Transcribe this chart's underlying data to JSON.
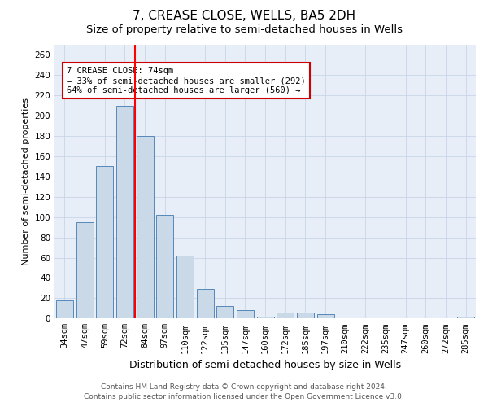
{
  "title": "7, CREASE CLOSE, WELLS, BA5 2DH",
  "subtitle": "Size of property relative to semi-detached houses in Wells",
  "xlabel": "Distribution of semi-detached houses by size in Wells",
  "ylabel": "Number of semi-detached properties",
  "categories": [
    "34sqm",
    "47sqm",
    "59sqm",
    "72sqm",
    "84sqm",
    "97sqm",
    "110sqm",
    "122sqm",
    "135sqm",
    "147sqm",
    "160sqm",
    "172sqm",
    "185sqm",
    "197sqm",
    "210sqm",
    "222sqm",
    "235sqm",
    "247sqm",
    "260sqm",
    "272sqm",
    "285sqm"
  ],
  "values": [
    18,
    95,
    150,
    210,
    180,
    102,
    62,
    29,
    12,
    8,
    2,
    6,
    6,
    4,
    0,
    0,
    0,
    0,
    0,
    0,
    2
  ],
  "bar_color": "#c9d9e8",
  "bar_edge_color": "#5588bb",
  "red_line_x": 3.5,
  "annotation_text": "7 CREASE CLOSE: 74sqm\n← 33% of semi-detached houses are smaller (292)\n64% of semi-detached houses are larger (560) →",
  "annotation_box_color": "#ffffff",
  "annotation_box_edge_color": "#cc0000",
  "ylim": [
    0,
    270
  ],
  "yticks": [
    0,
    20,
    40,
    60,
    80,
    100,
    120,
    140,
    160,
    180,
    200,
    220,
    240,
    260
  ],
  "grid_color": "#c8d4e8",
  "background_color": "#e8eef8",
  "footer_line1": "Contains HM Land Registry data © Crown copyright and database right 2024.",
  "footer_line2": "Contains public sector information licensed under the Open Government Licence v3.0.",
  "title_fontsize": 11,
  "subtitle_fontsize": 9.5,
  "xlabel_fontsize": 9,
  "ylabel_fontsize": 8,
  "tick_fontsize": 7.5,
  "footer_fontsize": 6.5,
  "ann_fontsize": 7.5
}
